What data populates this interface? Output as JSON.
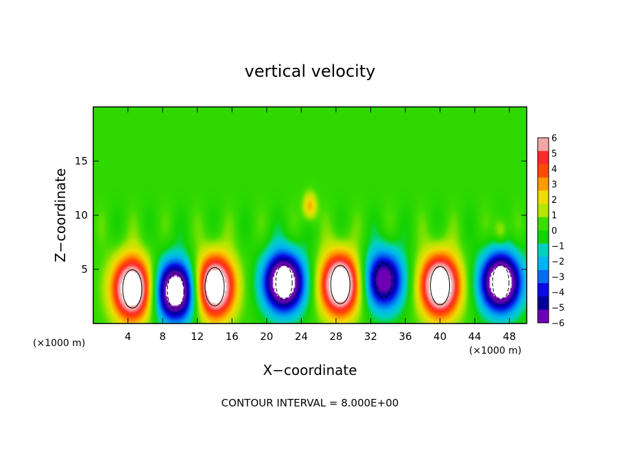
{
  "chart_data": {
    "type": "heatmap",
    "title": "vertical velocity",
    "xlabel": "X−coordinate",
    "ylabel": "Z−coordinate",
    "xlim": [
      0,
      50
    ],
    "ylim": [
      0,
      20
    ],
    "x_ticks": [
      "4",
      "8",
      "12",
      "16",
      "20",
      "24",
      "28",
      "32",
      "36",
      "40",
      "44",
      "48"
    ],
    "y_ticks": [
      "5",
      "10",
      "15"
    ],
    "x_scale_label": "(×1000 m)",
    "x_scale_label_right": "(×1000 m)",
    "colorbar": {
      "range": [
        -6,
        6
      ],
      "ticks": [
        "6",
        "5",
        "4",
        "3",
        "2",
        "1",
        "0",
        "−1",
        "−2",
        "−3",
        "−4",
        "−5",
        "−6"
      ],
      "colors": [
        "#f4a6a6",
        "#ff2a2a",
        "#ff4a00",
        "#ff9a00",
        "#f0dc00",
        "#b4e600",
        "#3cdc00",
        "#14d200",
        "#00d2be",
        "#00b4f0",
        "#006ef0",
        "#0a0ae6",
        "#000096",
        "#6e00b4"
      ]
    },
    "updraft_cells": [
      {
        "x_center": 4.5,
        "z_center": 3.2,
        "peak": 8
      },
      {
        "x_center": 14,
        "z_center": 3.4,
        "peak": 8
      },
      {
        "x_center": 28.5,
        "z_center": 3.6,
        "peak": 8
      },
      {
        "x_center": 40,
        "z_center": 3.5,
        "peak": 8
      }
    ],
    "downdraft_cells": [
      {
        "x_center": 9.5,
        "z_center": 3.0,
        "peak": -8
      },
      {
        "x_center": 22,
        "z_center": 3.8,
        "peak": -8
      },
      {
        "x_center": 33.5,
        "z_center": 4.0,
        "peak": -6
      },
      {
        "x_center": 47,
        "z_center": 3.8,
        "peak": -8
      }
    ],
    "upper_updrafts": [
      {
        "x_center": 25,
        "z_center": 10.8,
        "peak": 3
      },
      {
        "x_center": 47,
        "z_center": 8.5,
        "peak": 2
      }
    ],
    "contour_interval": "8.000E+00"
  },
  "footer": {
    "contour_interval_text": "CONTOUR INTERVAL = 8.000E+00"
  }
}
